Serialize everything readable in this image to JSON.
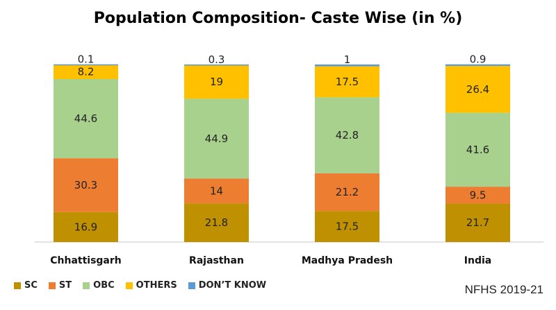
{
  "chart_data": {
    "type": "bar",
    "stacked": true,
    "title": "Population Composition- Caste Wise (in %)",
    "categories": [
      "Chhattisgarh",
      "Rajasthan",
      "Madhya Pradesh",
      "India"
    ],
    "series": [
      {
        "name": "SC",
        "color": "#BF9000",
        "values": [
          16.9,
          21.8,
          17.5,
          21.7
        ]
      },
      {
        "name": "ST",
        "color": "#ED7D31",
        "values": [
          30.3,
          14,
          21.2,
          9.5
        ]
      },
      {
        "name": "OBC",
        "color": "#A9D18E",
        "values": [
          44.6,
          44.9,
          42.8,
          41.6
        ]
      },
      {
        "name": "OTHERS",
        "color": "#FFC000",
        "values": [
          8.2,
          19,
          17.5,
          26.4
        ]
      },
      {
        "name": "DON’T KNOW",
        "color": "#5B9BD5",
        "values": [
          0.1,
          0.3,
          1,
          0.9
        ]
      }
    ],
    "ylim": [
      0,
      100
    ],
    "grid": false,
    "legend_position": "bottom-left"
  },
  "source": "NFHS 2019-21"
}
